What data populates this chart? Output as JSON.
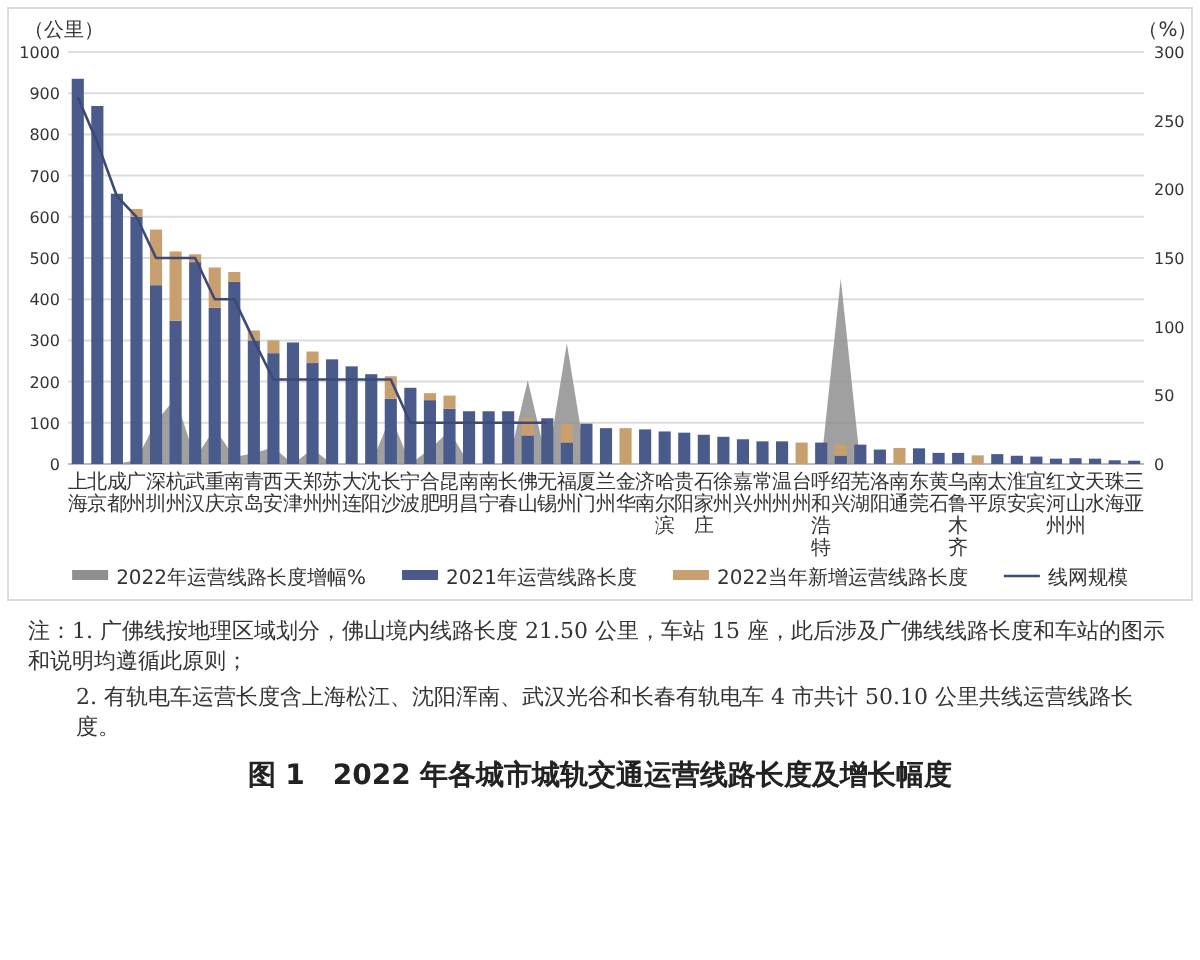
{
  "chart_data": {
    "type": "bar",
    "title": "图 1　2022 年各城市城轨交通运营线路长度及增长幅度",
    "ylabel": "（公里）",
    "y2label": "（%）",
    "categories": [
      "上海",
      "北京",
      "成都",
      "广州",
      "深圳",
      "杭州",
      "武汉",
      "重庆",
      "南京",
      "青岛",
      "西安",
      "天津",
      "郑州",
      "苏州",
      "大连",
      "沈阳",
      "长沙",
      "宁波",
      "合肥",
      "昆明",
      "南昌",
      "南宁",
      "长春",
      "佛山",
      "无锡",
      "福州",
      "厦门",
      "兰州",
      "金华",
      "济南",
      "哈尔滨",
      "贵阳",
      "石家庄",
      "徐州",
      "嘉兴",
      "常州",
      "温州",
      "台州",
      "呼和浩特",
      "绍兴",
      "芜湖",
      "洛阳",
      "南通",
      "东莞",
      "黄石",
      "乌鲁木齐",
      "南平",
      "太原",
      "淮安",
      "宜宾",
      "红河州",
      "文山州",
      "天水",
      "珠海",
      "三亚"
    ],
    "series": [
      {
        "name": "2022年运营线路长度增幅%",
        "type": "area",
        "axis": "y2",
        "color": "#8f8f8f",
        "values": [
          0,
          0,
          0,
          3,
          31,
          48,
          4,
          26,
          5,
          8,
          12,
          0,
          11,
          0,
          0,
          0,
          35,
          0,
          11,
          24,
          0,
          0,
          0,
          61,
          0,
          88,
          0,
          0,
          null,
          null,
          null,
          null,
          null,
          null,
          null,
          null,
          null,
          null,
          0,
          135,
          0,
          0,
          null,
          null,
          null,
          null,
          null,
          null,
          null,
          null,
          null,
          null,
          null,
          null,
          null
        ]
      },
      {
        "name": "2021年运营线路长度",
        "type": "bar",
        "color": "#4a5a8a",
        "values": [
          935,
          869,
          656,
          600,
          434,
          348,
          490,
          379,
          442,
          300,
          269,
          295,
          245,
          254,
          237,
          218,
          158,
          185,
          155,
          134,
          128,
          128,
          128,
          69,
          111,
          52,
          98,
          87,
          0,
          84,
          79,
          76,
          71,
          66,
          60,
          55,
          55,
          0,
          52,
          20,
          47,
          35,
          0,
          38,
          27,
          27,
          0,
          24,
          20,
          18,
          13,
          14,
          13,
          9,
          8
        ]
      },
      {
        "name": "2022当年新增运营线路长度",
        "type": "bar",
        "color": "#c8a070",
        "values": [
          0,
          0,
          0,
          19,
          135,
          168,
          19,
          98,
          24,
          24,
          31,
          0,
          28,
          0,
          0,
          0,
          55,
          0,
          17,
          32,
          0,
          0,
          0,
          42,
          0,
          46,
          0,
          0,
          87,
          0,
          0,
          0,
          0,
          0,
          0,
          0,
          0,
          52,
          0,
          27,
          0,
          0,
          39,
          0,
          0,
          0,
          21,
          0,
          0,
          0,
          0,
          0,
          0,
          0,
          0
        ]
      },
      {
        "name": "线网规模",
        "type": "line",
        "color": "#3d4a78",
        "values": [
          890,
          780,
          650,
          600,
          500,
          500,
          500,
          400,
          400,
          300,
          205,
          205,
          205,
          205,
          205,
          205,
          205,
          100,
          100,
          100,
          100,
          100,
          100,
          100,
          100,
          null,
          null,
          null,
          null,
          null,
          null,
          null,
          null,
          null,
          null,
          null,
          null,
          null,
          null,
          null,
          null,
          null,
          null,
          null,
          null,
          null,
          null,
          null,
          null,
          null,
          null,
          null,
          null,
          null,
          null
        ]
      }
    ],
    "stacked": true,
    "ylim": [
      0,
      1000
    ],
    "yticks": [
      0,
      100,
      200,
      300,
      400,
      500,
      600,
      700,
      800,
      900,
      1000
    ],
    "y2lim": [
      0,
      300
    ],
    "y2ticks": [
      0,
      50,
      100,
      150,
      200,
      250,
      300
    ],
    "grid": "y",
    "legend": "bottom",
    "annotations": [
      "注：1. 广佛线按地理区域划分，佛山境内线路长度 21.50 公里，车站 15 座，此后涉及广佛线线路长度和车站的图示和说明均遵循此原则；",
      "2. 有轨电车运营长度含上海松江、沈阳浑南、武汉光谷和长春有轨电车 4 市共计 50.10 公里共线运营线路长度。"
    ]
  }
}
